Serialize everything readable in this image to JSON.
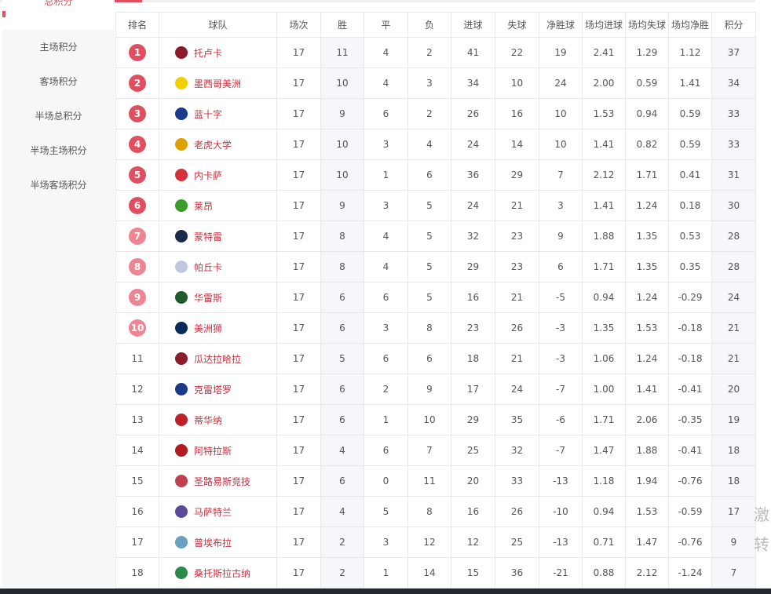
{
  "sidebar": {
    "items": [
      {
        "label": "总积分",
        "active": true
      },
      {
        "label": "主场积分"
      },
      {
        "label": "客场积分"
      },
      {
        "label": "半场总积分"
      },
      {
        "label": "半场主场积分"
      },
      {
        "label": "半场客场积分"
      }
    ]
  },
  "headers": [
    "排名",
    "球队",
    "场次",
    "胜",
    "平",
    "负",
    "进球",
    "失球",
    "净胜球",
    "场均进球",
    "场均失球",
    "场均净胜",
    "积分"
  ],
  "colors": {
    "accent": "#e04f5f",
    "badge_top": "#e04f5f",
    "badge_mid": "#ef8590",
    "team_text": "#c8303f"
  },
  "rows": [
    [
      "1",
      "托卢卡",
      "17",
      "11",
      "4",
      "2",
      "41",
      "22",
      "19",
      "2.41",
      "1.29",
      "1.12",
      "37"
    ],
    [
      "2",
      "墨西哥美洲",
      "17",
      "10",
      "4",
      "3",
      "34",
      "10",
      "24",
      "2.00",
      "0.59",
      "1.41",
      "34"
    ],
    [
      "3",
      "蓝十字",
      "17",
      "9",
      "6",
      "2",
      "26",
      "16",
      "10",
      "1.53",
      "0.94",
      "0.59",
      "33"
    ],
    [
      "4",
      "老虎大学",
      "17",
      "10",
      "3",
      "4",
      "24",
      "14",
      "10",
      "1.41",
      "0.82",
      "0.59",
      "33"
    ],
    [
      "5",
      "内卡萨",
      "17",
      "10",
      "1",
      "6",
      "36",
      "29",
      "7",
      "2.12",
      "1.71",
      "0.41",
      "31"
    ],
    [
      "6",
      "莱昂",
      "17",
      "9",
      "3",
      "5",
      "24",
      "21",
      "3",
      "1.41",
      "1.24",
      "0.18",
      "30"
    ],
    [
      "7",
      "蒙特雷",
      "17",
      "8",
      "4",
      "5",
      "32",
      "23",
      "9",
      "1.88",
      "1.35",
      "0.53",
      "28"
    ],
    [
      "8",
      "帕丘卡",
      "17",
      "8",
      "4",
      "5",
      "29",
      "23",
      "6",
      "1.71",
      "1.35",
      "0.35",
      "28"
    ],
    [
      "9",
      "华雷斯",
      "17",
      "6",
      "6",
      "5",
      "16",
      "21",
      "-5",
      "0.94",
      "1.24",
      "-0.29",
      "24"
    ],
    [
      "10",
      "美洲狮",
      "17",
      "6",
      "3",
      "8",
      "23",
      "26",
      "-3",
      "1.35",
      "1.53",
      "-0.18",
      "21"
    ],
    [
      "11",
      "瓜达拉哈拉",
      "17",
      "5",
      "6",
      "6",
      "18",
      "21",
      "-3",
      "1.06",
      "1.24",
      "-0.18",
      "21"
    ],
    [
      "12",
      "克雷塔罗",
      "17",
      "6",
      "2",
      "9",
      "17",
      "24",
      "-7",
      "1.00",
      "1.41",
      "-0.41",
      "20"
    ],
    [
      "13",
      "蒂华纳",
      "17",
      "6",
      "1",
      "10",
      "29",
      "35",
      "-6",
      "1.71",
      "2.06",
      "-0.35",
      "19"
    ],
    [
      "14",
      "阿特拉斯",
      "17",
      "4",
      "6",
      "7",
      "25",
      "32",
      "-7",
      "1.47",
      "1.88",
      "-0.41",
      "18"
    ],
    [
      "15",
      "圣路易斯竞技",
      "17",
      "6",
      "0",
      "11",
      "20",
      "33",
      "-13",
      "1.18",
      "1.94",
      "-0.76",
      "18"
    ],
    [
      "16",
      "马萨特兰",
      "17",
      "4",
      "5",
      "8",
      "16",
      "26",
      "-10",
      "0.94",
      "1.53",
      "-0.59",
      "17"
    ],
    [
      "17",
      "普埃布拉",
      "17",
      "2",
      "3",
      "12",
      "12",
      "25",
      "-13",
      "0.71",
      "1.47",
      "-0.76",
      "9"
    ],
    [
      "18",
      "桑托斯拉古纳",
      "17",
      "2",
      "1",
      "14",
      "15",
      "36",
      "-21",
      "0.88",
      "2.12",
      "-1.24",
      "7"
    ]
  ],
  "logo_colors": [
    "#8a1c2b",
    "#f2d000",
    "#1a3a8a",
    "#e0a000",
    "#d8303a",
    "#3a9a2a",
    "#1a2a4a",
    "#c0c8e0",
    "#1f5a2a",
    "#0a2a5a",
    "#8a1c2b",
    "#1a3a8a",
    "#c0202a",
    "#b01a20",
    "#c04050",
    "#5a4a9a",
    "#6aa0c0",
    "#2a8a4a"
  ],
  "side_text": [
    "激",
    "转"
  ]
}
